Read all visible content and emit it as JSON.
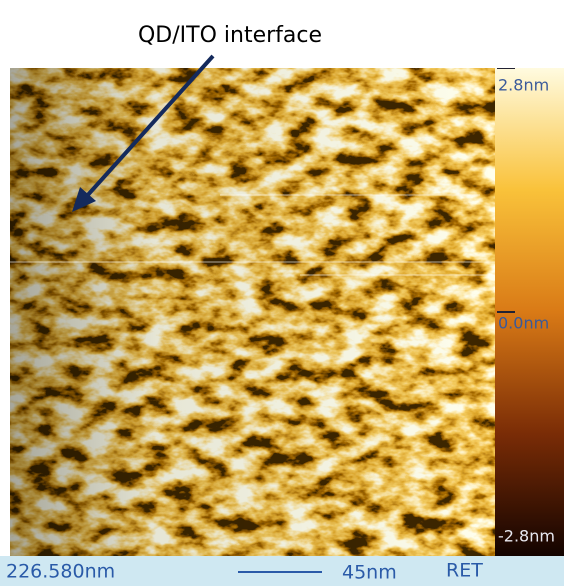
{
  "annotation": "QD/ITO interface",
  "colorbar": {
    "max_label": "2.8nm",
    "mid_label": "0.0nm",
    "min_label": "-2.8nm"
  },
  "status_bar": {
    "size": "226.580nm",
    "scale": "45nm",
    "mode": "RET"
  }
}
